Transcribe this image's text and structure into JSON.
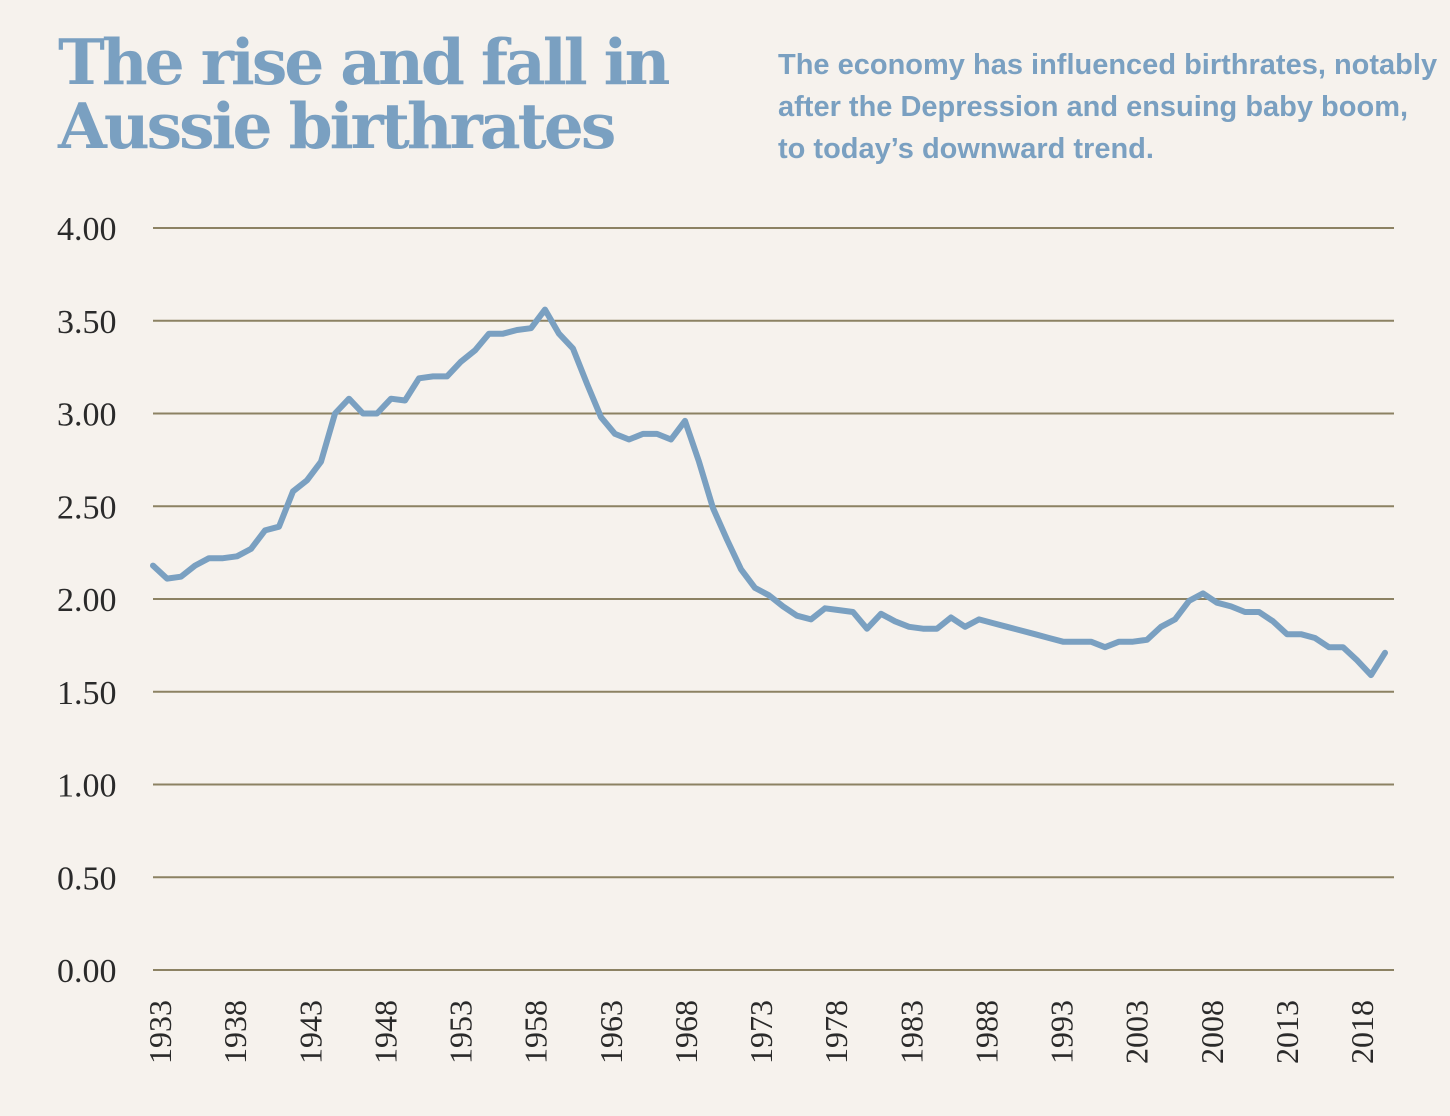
{
  "chart_data": {
    "type": "line",
    "title": "The rise and fall in Aussie birthrates",
    "subtitle": "The economy has influenced birthrates, notably after the Depression and ensuing baby boom, to today’s downward trend.",
    "xlabel": "",
    "ylabel": "",
    "ylim": [
      0,
      4
    ],
    "xlim": [
      1933,
      2021
    ],
    "grid": true,
    "yticks": [
      "0.00",
      "0.50",
      "1.00",
      "1.50",
      "2.00",
      "2.50",
      "3.00",
      "3.50",
      "4.00"
    ],
    "xtick_labels": [
      "1933",
      "1938",
      "1943",
      "1948",
      "1953",
      "1958",
      "1963",
      "1968",
      "1973",
      "1978",
      "1983",
      "1988",
      "1993",
      "2003",
      "2008",
      "2013",
      "2018"
    ],
    "colors": {
      "line": "#7aa0c1",
      "grid": "#8c8263",
      "background": "#f6f2ed",
      "title": "#7aa0c1"
    },
    "series": [
      {
        "x": [
          1933,
          1934,
          1935,
          1936,
          1937,
          1938,
          1939,
          1940,
          1941,
          1942,
          1943,
          1944,
          1945,
          1946,
          1947,
          1948,
          1949,
          1950,
          1951,
          1952,
          1953,
          1954,
          1955,
          1956,
          1957,
          1958,
          1959,
          1960,
          1961,
          1962,
          1963,
          1964,
          1965,
          1966,
          1967,
          1968,
          1969,
          1970,
          1971,
          1972,
          1973,
          1974,
          1975,
          1976,
          1977,
          1978,
          1979,
          1980,
          1981,
          1982,
          1983,
          1984,
          1985,
          1986,
          1987,
          1988,
          1989,
          1990,
          1991,
          1992,
          1993,
          1994,
          1995,
          1996,
          1997,
          1998,
          1999,
          2000,
          2001,
          2002,
          2003,
          2004,
          2005,
          2006,
          2007,
          2008,
          2009,
          2010,
          2011,
          2012,
          2013,
          2014,
          2015,
          2016,
          2017,
          2018,
          2019,
          2020,
          2021
        ],
        "values": [
          2.18,
          2.11,
          2.12,
          2.18,
          2.22,
          2.22,
          2.23,
          2.27,
          2.37,
          2.39,
          2.58,
          2.64,
          2.74,
          3.0,
          3.08,
          3.0,
          3.0,
          3.08,
          3.07,
          3.19,
          3.2,
          3.2,
          3.28,
          3.34,
          3.43,
          3.43,
          3.45,
          3.46,
          3.56,
          3.43,
          3.35,
          3.16,
          2.98,
          2.89,
          2.86,
          2.89,
          2.89,
          2.86,
          2.96,
          2.74,
          2.49,
          2.32,
          2.16,
          2.06,
          2.02,
          1.96,
          1.91,
          1.89,
          1.95,
          1.94,
          1.93,
          1.84,
          1.92,
          1.88,
          1.85,
          1.84,
          1.84,
          1.9,
          1.85,
          1.89,
          1.87,
          1.85,
          1.83,
          1.81,
          1.79,
          1.77,
          1.77,
          1.77,
          1.74,
          1.77,
          1.77,
          1.78,
          1.85,
          1.89,
          1.99,
          2.03,
          1.98,
          1.96,
          1.93,
          1.93,
          1.88,
          1.81,
          1.81,
          1.79,
          1.74,
          1.74,
          1.67,
          1.59,
          1.71
        ]
      }
    ]
  }
}
